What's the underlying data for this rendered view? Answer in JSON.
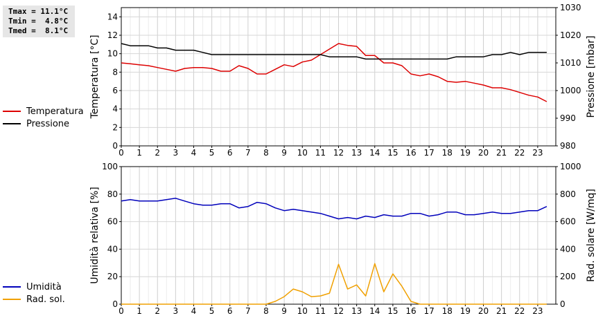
{
  "stats": {
    "tmax": "Tmax = 11.1°C",
    "tmin": "Tmin =  4.8°C",
    "tmed": "Tmed =  8.1°C"
  },
  "legend_top": [
    {
      "label": "Temperatura",
      "color": "#dd0000"
    },
    {
      "label": "Pressione",
      "color": "#000000"
    }
  ],
  "legend_bottom": [
    {
      "label": "Umidità",
      "color": "#0000bb"
    },
    {
      "label": "Rad. sol.",
      "color": "#f0a000"
    }
  ],
  "chart_data": [
    {
      "type": "line",
      "xlabel": "",
      "xlim": [
        0,
        24
      ],
      "x_ticks": [
        "0",
        "1",
        "2",
        "3",
        "4",
        "5",
        "6",
        "7",
        "8",
        "9",
        "10",
        "11",
        "12",
        "13",
        "14",
        "15",
        "16",
        "17",
        "18",
        "19",
        "20",
        "21",
        "22",
        "23"
      ],
      "ylabel": "Temperatura [°C]",
      "ylim": [
        0,
        15
      ],
      "y_ticks": [
        "0",
        "2",
        "4",
        "6",
        "8",
        "10",
        "12",
        "14"
      ],
      "y2label": "Pressione [mbar]",
      "y2lim": [
        980,
        1030
      ],
      "y2_ticks": [
        "980",
        "990",
        "1000",
        "1010",
        "1020",
        "1030"
      ],
      "grid": true,
      "series": [
        {
          "name": "Temperatura",
          "axis": "left",
          "color": "#dd0000",
          "x": [
            0,
            0.5,
            1,
            1.5,
            2,
            2.5,
            3,
            3.5,
            4,
            4.5,
            5,
            5.5,
            6,
            6.5,
            7,
            7.5,
            8,
            8.5,
            9,
            9.5,
            10,
            10.5,
            11,
            11.5,
            12,
            12.5,
            13,
            13.5,
            14,
            14.5,
            15,
            15.5,
            16,
            16.5,
            17,
            17.5,
            18,
            18.5,
            19,
            19.5,
            20,
            20.5,
            21,
            21.5,
            22,
            22.5,
            23,
            23.5
          ],
          "y": [
            9.0,
            8.9,
            8.8,
            8.7,
            8.5,
            8.3,
            8.1,
            8.4,
            8.5,
            8.5,
            8.4,
            8.1,
            8.1,
            8.7,
            8.4,
            7.8,
            7.8,
            8.3,
            8.8,
            8.6,
            9.1,
            9.3,
            9.9,
            10.5,
            11.1,
            10.9,
            10.8,
            9.8,
            9.8,
            9.0,
            9.0,
            8.7,
            7.8,
            7.6,
            7.8,
            7.5,
            7.0,
            6.9,
            7.0,
            6.8,
            6.6,
            6.3,
            6.3,
            6.1,
            5.8,
            5.5,
            5.3,
            4.8
          ]
        },
        {
          "name": "Pressione",
          "axis": "right",
          "color": "#000000",
          "x": [
            0,
            0.5,
            1,
            1.5,
            2,
            2.5,
            3,
            3.5,
            4,
            4.5,
            5,
            5.5,
            6,
            6.5,
            7,
            7.5,
            8,
            8.5,
            9,
            9.5,
            10,
            10.5,
            11,
            11.5,
            12,
            12.5,
            13,
            13.5,
            14,
            14.5,
            15,
            15.5,
            16,
            16.5,
            17,
            17.5,
            18,
            18.5,
            19,
            19.5,
            20,
            20.5,
            21,
            21.5,
            22,
            22.5,
            23,
            23.5
          ],
          "y": [
            1017,
            1016.2,
            1016.2,
            1016.2,
            1015.4,
            1015.4,
            1014.6,
            1014.6,
            1014.6,
            1013.8,
            1013,
            1013,
            1013,
            1013,
            1013,
            1013,
            1013,
            1013,
            1013,
            1013,
            1013,
            1013,
            1013,
            1012.2,
            1012.2,
            1012.2,
            1012.2,
            1011.4,
            1011.4,
            1011.4,
            1011.4,
            1011.4,
            1011.4,
            1011.4,
            1011.4,
            1011.4,
            1011.4,
            1012.2,
            1012.2,
            1012.2,
            1012.2,
            1013,
            1013,
            1013.8,
            1013,
            1013.8,
            1013.8,
            1013.8
          ]
        }
      ]
    },
    {
      "type": "line",
      "xlabel": "",
      "xlim": [
        0,
        24
      ],
      "x_ticks": [
        "0",
        "1",
        "2",
        "3",
        "4",
        "5",
        "6",
        "7",
        "8",
        "9",
        "10",
        "11",
        "12",
        "13",
        "14",
        "15",
        "16",
        "17",
        "18",
        "19",
        "20",
        "21",
        "22",
        "23"
      ],
      "ylabel": "Umidità relativa [%]",
      "ylim": [
        0,
        100
      ],
      "y_ticks": [
        "0",
        "20",
        "40",
        "60",
        "80",
        "100"
      ],
      "y2label": "Rad. solare [W/mq]",
      "y2lim": [
        0,
        1000
      ],
      "y2_ticks": [
        "0",
        "200",
        "400",
        "600",
        "800",
        "1000"
      ],
      "grid": true,
      "series": [
        {
          "name": "Umidità",
          "axis": "left",
          "color": "#0000bb",
          "x": [
            0,
            0.5,
            1,
            1.5,
            2,
            2.5,
            3,
            3.5,
            4,
            4.5,
            5,
            5.5,
            6,
            6.5,
            7,
            7.5,
            8,
            8.5,
            9,
            9.5,
            10,
            10.5,
            11,
            11.5,
            12,
            12.5,
            13,
            13.5,
            14,
            14.5,
            15,
            15.5,
            16,
            16.5,
            17,
            17.5,
            18,
            18.5,
            19,
            19.5,
            20,
            20.5,
            21,
            21.5,
            22,
            22.5,
            23,
            23.5
          ],
          "y": [
            75,
            76,
            75,
            75,
            75,
            76,
            77,
            75,
            73,
            72,
            72,
            73,
            73,
            70,
            71,
            74,
            73,
            70,
            68,
            69,
            68,
            67,
            66,
            64,
            62,
            63,
            62,
            64,
            63,
            65,
            64,
            64,
            66,
            66,
            64,
            65,
            67,
            67,
            65,
            65,
            66,
            67,
            66,
            66,
            67,
            68,
            68,
            71
          ]
        },
        {
          "name": "Rad. sol.",
          "axis": "right",
          "color": "#f0a000",
          "x": [
            0,
            0.5,
            1,
            1.5,
            2,
            2.5,
            3,
            3.5,
            4,
            4.5,
            5,
            5.5,
            6,
            6.5,
            7,
            7.5,
            8,
            8.5,
            9,
            9.5,
            10,
            10.5,
            11,
            11.5,
            12,
            12.5,
            13,
            13.5,
            14,
            14.5,
            15,
            15.5,
            16,
            16.5,
            17,
            17.5,
            18,
            18.5,
            19,
            19.5,
            20,
            20.5,
            21,
            21.5,
            22,
            22.5,
            23,
            23.5
          ],
          "y": [
            0,
            0,
            0,
            0,
            0,
            0,
            0,
            0,
            0,
            0,
            0,
            0,
            0,
            0,
            0,
            0,
            0,
            20,
            55,
            110,
            90,
            55,
            60,
            80,
            290,
            110,
            140,
            60,
            295,
            90,
            220,
            130,
            20,
            0,
            0,
            0,
            0,
            0,
            0,
            0,
            0,
            0,
            0,
            0,
            0,
            0,
            0,
            0
          ]
        }
      ]
    }
  ]
}
